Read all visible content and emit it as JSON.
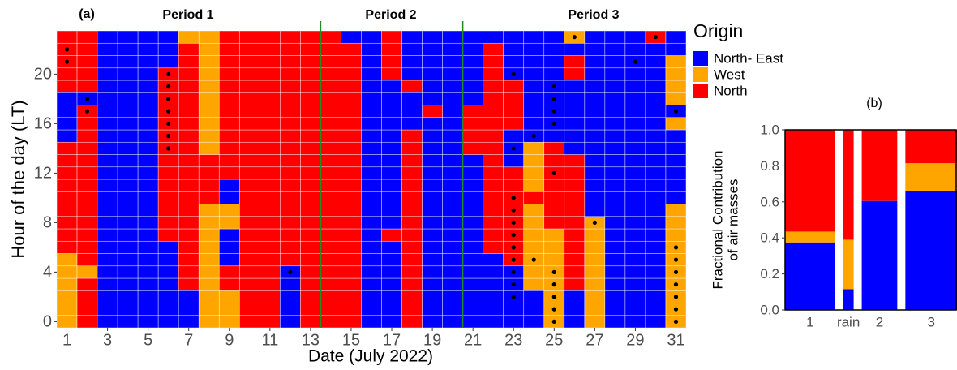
{
  "chart_data": [
    {
      "type": "heatmap",
      "label": "(a)",
      "annotations": [
        "Period 1",
        "Period 2",
        "Period 3"
      ],
      "xlabel": "Date (July 2022)",
      "ylabel": "Hour of the day (LT)",
      "legend_title": "Origin",
      "levels": [
        {
          "name": "North- East",
          "color": "#0000ff"
        },
        {
          "name": "West",
          "color": "#ffa500"
        },
        {
          "name": "North",
          "color": "#ff0000"
        }
      ],
      "x": [
        1,
        2,
        3,
        4,
        5,
        6,
        7,
        8,
        9,
        10,
        11,
        12,
        13,
        14,
        15,
        16,
        17,
        18,
        19,
        20,
        21,
        22,
        23,
        24,
        25,
        26,
        27,
        28,
        29,
        30,
        31
      ],
      "y": [
        0,
        1,
        2,
        3,
        4,
        5,
        6,
        7,
        8,
        9,
        10,
        11,
        12,
        13,
        14,
        15,
        16,
        17,
        18,
        19,
        20,
        21,
        22,
        23
      ],
      "z": [
        [
          1,
          1,
          1,
          1,
          1,
          1,
          2,
          2,
          2,
          2,
          2,
          2,
          2,
          2,
          2,
          0,
          0,
          0,
          0,
          2,
          2,
          2,
          2,
          2
        ],
        [
          2,
          2,
          2,
          2,
          1,
          2,
          2,
          2,
          2,
          2,
          2,
          2,
          2,
          2,
          2,
          2,
          2,
          2,
          0,
          2,
          2,
          2,
          2,
          2
        ],
        [
          0,
          0,
          0,
          0,
          0,
          0,
          0,
          0,
          0,
          0,
          0,
          0,
          0,
          0,
          0,
          0,
          0,
          0,
          0,
          0,
          0,
          0,
          0,
          0
        ],
        [
          0,
          0,
          0,
          0,
          0,
          0,
          0,
          0,
          0,
          0,
          0,
          0,
          0,
          0,
          0,
          0,
          0,
          0,
          0,
          0,
          0,
          0,
          0,
          0
        ],
        [
          0,
          0,
          0,
          0,
          0,
          0,
          0,
          0,
          0,
          0,
          0,
          0,
          0,
          0,
          0,
          0,
          0,
          0,
          0,
          0,
          0,
          0,
          0,
          0
        ],
        [
          0,
          0,
          0,
          0,
          0,
          0,
          0,
          2,
          2,
          2,
          2,
          2,
          2,
          2,
          2,
          2,
          2,
          2,
          2,
          2,
          2,
          0,
          0,
          0
        ],
        [
          0,
          0,
          0,
          2,
          2,
          2,
          2,
          2,
          2,
          2,
          2,
          2,
          2,
          2,
          2,
          2,
          2,
          2,
          2,
          2,
          2,
          2,
          2,
          1
        ],
        [
          1,
          1,
          1,
          1,
          1,
          1,
          1,
          1,
          1,
          1,
          2,
          2,
          2,
          2,
          1,
          1,
          1,
          1,
          1,
          1,
          1,
          1,
          1,
          1
        ],
        [
          1,
          1,
          1,
          2,
          2,
          0,
          0,
          0,
          1,
          1,
          0,
          0,
          2,
          2,
          2,
          2,
          2,
          2,
          2,
          2,
          2,
          2,
          2,
          2
        ],
        [
          2,
          2,
          2,
          2,
          2,
          2,
          2,
          2,
          2,
          2,
          2,
          2,
          2,
          2,
          2,
          2,
          2,
          2,
          2,
          2,
          2,
          2,
          2,
          2
        ],
        [
          2,
          2,
          2,
          2,
          2,
          2,
          2,
          2,
          2,
          2,
          2,
          2,
          2,
          2,
          2,
          2,
          2,
          2,
          2,
          2,
          2,
          2,
          2,
          2
        ],
        [
          0,
          0,
          0,
          0,
          0,
          2,
          2,
          2,
          2,
          2,
          2,
          2,
          2,
          2,
          2,
          2,
          2,
          2,
          2,
          2,
          2,
          2,
          2,
          2
        ],
        [
          2,
          2,
          2,
          2,
          2,
          2,
          2,
          2,
          2,
          2,
          2,
          2,
          2,
          2,
          2,
          2,
          2,
          2,
          2,
          2,
          2,
          2,
          2,
          2
        ],
        [
          2,
          2,
          2,
          2,
          2,
          2,
          2,
          2,
          2,
          2,
          2,
          2,
          2,
          2,
          2,
          2,
          2,
          2,
          2,
          2,
          2,
          2,
          2,
          2
        ],
        [
          2,
          2,
          2,
          2,
          2,
          2,
          2,
          2,
          2,
          2,
          2,
          2,
          2,
          2,
          2,
          2,
          2,
          2,
          2,
          2,
          2,
          2,
          2,
          0
        ],
        [
          0,
          0,
          0,
          0,
          0,
          0,
          0,
          0,
          0,
          0,
          0,
          0,
          0,
          0,
          0,
          0,
          0,
          0,
          0,
          0,
          0,
          0,
          0,
          0
        ],
        [
          0,
          0,
          0,
          0,
          0,
          0,
          0,
          2,
          0,
          0,
          0,
          0,
          0,
          0,
          0,
          0,
          0,
          0,
          0,
          0,
          2,
          2,
          2,
          2
        ],
        [
          2,
          2,
          2,
          2,
          2,
          2,
          2,
          2,
          2,
          2,
          2,
          2,
          2,
          2,
          2,
          2,
          0,
          0,
          0,
          2,
          0,
          0,
          0,
          0
        ],
        [
          0,
          0,
          0,
          0,
          0,
          0,
          0,
          0,
          0,
          0,
          0,
          0,
          0,
          0,
          0,
          0,
          0,
          2,
          0,
          0,
          0,
          0,
          0,
          0
        ],
        [
          0,
          0,
          0,
          0,
          0,
          0,
          0,
          0,
          0,
          0,
          0,
          0,
          0,
          0,
          0,
          0,
          0,
          0,
          0,
          0,
          0,
          0,
          0,
          0
        ],
        [
          0,
          0,
          0,
          0,
          0,
          0,
          0,
          0,
          0,
          0,
          0,
          0,
          0,
          0,
          2,
          2,
          2,
          2,
          0,
          0,
          0,
          0,
          0,
          0
        ],
        [
          0,
          0,
          0,
          0,
          0,
          0,
          2,
          2,
          2,
          2,
          2,
          2,
          2,
          2,
          2,
          2,
          2,
          2,
          2,
          2,
          2,
          2,
          2,
          0
        ],
        [
          0,
          0,
          0,
          0,
          0,
          2,
          2,
          2,
          2,
          2,
          2,
          2,
          2,
          0,
          0,
          0,
          2,
          2,
          2,
          2,
          0,
          0,
          0,
          0
        ],
        [
          0,
          0,
          0,
          1,
          1,
          1,
          1,
          1,
          1,
          1,
          2,
          1,
          1,
          1,
          1,
          0,
          0,
          0,
          0,
          0,
          0,
          0,
          0,
          0
        ],
        [
          1,
          1,
          1,
          1,
          1,
          1,
          1,
          1,
          2,
          2,
          2,
          2,
          2,
          2,
          2,
          0,
          0,
          0,
          0,
          0,
          0,
          0,
          0,
          0
        ],
        [
          0,
          0,
          0,
          2,
          2,
          2,
          2,
          2,
          2,
          2,
          2,
          2,
          2,
          2,
          0,
          0,
          0,
          0,
          0,
          0,
          2,
          2,
          0,
          1
        ],
        [
          1,
          1,
          1,
          1,
          1,
          1,
          1,
          1,
          1,
          0,
          0,
          0,
          0,
          0,
          0,
          0,
          0,
          0,
          0,
          0,
          0,
          0,
          0,
          0
        ],
        [
          0,
          0,
          0,
          0,
          0,
          0,
          0,
          0,
          0,
          0,
          0,
          0,
          0,
          0,
          0,
          0,
          0,
          0,
          0,
          0,
          0,
          0,
          0,
          0
        ],
        [
          0,
          0,
          0,
          0,
          0,
          0,
          0,
          0,
          0,
          0,
          0,
          0,
          0,
          0,
          0,
          0,
          0,
          0,
          0,
          0,
          0,
          0,
          0,
          0
        ],
        [
          0,
          0,
          0,
          0,
          0,
          0,
          0,
          0,
          0,
          0,
          0,
          0,
          0,
          0,
          0,
          0,
          0,
          0,
          0,
          0,
          0,
          0,
          0,
          2
        ],
        [
          1,
          1,
          1,
          1,
          1,
          1,
          1,
          1,
          1,
          1,
          0,
          0,
          0,
          0,
          0,
          0,
          1,
          0,
          1,
          1,
          1,
          1,
          0,
          0
        ]
      ],
      "points": {
        "x": [
          1,
          1,
          2,
          2,
          6,
          6,
          6,
          6,
          6,
          6,
          6,
          12,
          23,
          23,
          23,
          23,
          23,
          23,
          23,
          23,
          23,
          23,
          23,
          24,
          24,
          25,
          25,
          25,
          25,
          25,
          25,
          25,
          25,
          25,
          25,
          26,
          27,
          29,
          30,
          31,
          31,
          31,
          31,
          31,
          31,
          31,
          31
        ],
        "y": [
          22,
          21,
          18,
          17,
          20,
          19,
          18,
          17,
          16,
          15,
          14,
          4,
          20,
          14,
          10,
          9,
          8,
          7,
          6,
          5,
          4,
          3,
          2,
          15,
          5,
          19,
          18,
          17,
          16,
          12,
          4,
          3,
          2,
          1,
          0,
          23,
          8,
          21,
          23,
          17,
          6,
          5,
          4,
          3,
          2,
          1,
          0
        ]
      },
      "vlines": [
        13.5,
        20.5
      ],
      "vline_color": "#228b22",
      "xlim": [
        0.5,
        31.5
      ],
      "ylim": [
        -0.5,
        23.5
      ],
      "xticks": [
        1,
        3,
        5,
        7,
        9,
        11,
        13,
        15,
        17,
        19,
        21,
        23,
        25,
        27,
        29,
        31
      ],
      "yticks": [
        0,
        4,
        8,
        12,
        16,
        20
      ]
    },
    {
      "type": "bar",
      "title": "(b)",
      "ylabel": [
        "Fractional Contribution",
        "of air masses"
      ],
      "categories": [
        "1",
        "rain",
        "2",
        "3"
      ],
      "widths": [
        62,
        13,
        44,
        64
      ],
      "series": [
        {
          "color": "#0000ff",
          "values": [
            0.375,
            0.115,
            0.605,
            0.66
          ]
        },
        {
          "color": "#ffa500",
          "values": [
            0.06,
            0.275,
            0,
            0.155
          ]
        },
        {
          "color": "#ff0000",
          "values": [
            0.565,
            0.61,
            0.395,
            0.185
          ]
        }
      ],
      "ylim": [
        0,
        1
      ],
      "yticks": [
        {
          "value": 0,
          "label": "0.0"
        },
        0.2,
        0.4,
        0.6,
        0.8,
        {
          "value": 1,
          "label": "1.0"
        }
      ]
    }
  ]
}
